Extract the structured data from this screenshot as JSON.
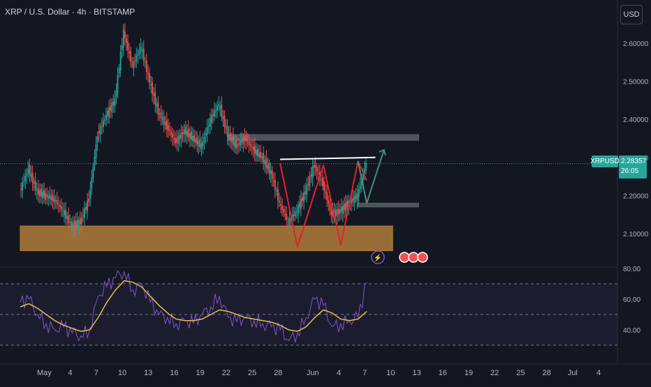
{
  "header": {
    "symbol_title": "XRP / U.S. Dollar · 4h · BITSTAMP",
    "currency_button": "USD"
  },
  "last_price": {
    "symbol": "XRPUSD",
    "value": "2.28357",
    "countdown": "26:05"
  },
  "chart_data": [
    {
      "type": "candlestick",
      "title": "XRP / U.S. Dollar · 4h · BITSTAMP",
      "x_tick_labels": [
        "May",
        "4",
        "7",
        "10",
        "13",
        "16",
        "19",
        "22",
        "25",
        "28",
        "Jun",
        "4",
        "7",
        "10",
        "13",
        "16",
        "19",
        "22",
        "25",
        "28",
        "Jul",
        "4"
      ],
      "y_tick_labels": [
        "2.10000",
        "2.20000",
        "2.30000",
        "2.40000",
        "2.50000",
        "2.60000"
      ],
      "ylim": [
        2.03,
        2.72
      ],
      "series": [
        {
          "type": "close_path",
          "points": [
            [
              "2025-04-30",
              2.21
            ],
            [
              "2025-05-01",
              2.27
            ],
            [
              "2025-05-02",
              2.21
            ],
            [
              "2025-05-03",
              2.2
            ],
            [
              "2025-05-04",
              2.19
            ],
            [
              "2025-05-05",
              2.16
            ],
            [
              "2025-05-06",
              2.12
            ],
            [
              "2025-05-07",
              2.13
            ],
            [
              "2025-05-08",
              2.19
            ],
            [
              "2025-05-09",
              2.36
            ],
            [
              "2025-05-10",
              2.41
            ],
            [
              "2025-05-11",
              2.45
            ],
            [
              "2025-05-12",
              2.63
            ],
            [
              "2025-05-13",
              2.54
            ],
            [
              "2025-05-14",
              2.59
            ],
            [
              "2025-05-15",
              2.5
            ],
            [
              "2025-05-16",
              2.42
            ],
            [
              "2025-05-17",
              2.38
            ],
            [
              "2025-05-18",
              2.34
            ],
            [
              "2025-05-19",
              2.37
            ],
            [
              "2025-05-20",
              2.35
            ],
            [
              "2025-05-21",
              2.33
            ],
            [
              "2025-05-22",
              2.4
            ],
            [
              "2025-05-23",
              2.44
            ],
            [
              "2025-05-24",
              2.36
            ],
            [
              "2025-05-25",
              2.33
            ],
            [
              "2025-05-26",
              2.35
            ],
            [
              "2025-05-27",
              2.32
            ],
            [
              "2025-05-28",
              2.3
            ],
            [
              "2025-05-29",
              2.26
            ],
            [
              "2025-05-30",
              2.18
            ],
            [
              "2025-05-31",
              2.13
            ],
            [
              "2025-06-01",
              2.16
            ],
            [
              "2025-06-02",
              2.21
            ],
            [
              "2025-06-03",
              2.28
            ],
            [
              "2025-06-04",
              2.23
            ],
            [
              "2025-06-05",
              2.15
            ],
            [
              "2025-06-06",
              2.16
            ],
            [
              "2025-06-07",
              2.18
            ],
            [
              "2025-06-08",
              2.2
            ],
            [
              "2025-06-09",
              2.28357
            ]
          ]
        }
      ],
      "levels": [
        {
          "name": "last-price",
          "value": 2.28357
        }
      ],
      "annotations": [
        {
          "type": "zone",
          "name": "support-zone",
          "color": "#b07d38",
          "x": [
            "2025-04-30",
            "2025-06-12"
          ],
          "y": [
            2.055,
            2.12
          ]
        },
        {
          "type": "zone",
          "name": "resistance-zone-upper",
          "color": "#5b5e66",
          "x": [
            "2025-05-24",
            "2025-06-15"
          ],
          "y": [
            2.345,
            2.36
          ]
        },
        {
          "type": "zone",
          "name": "resistance-zone-lower",
          "color": "#5b5e66",
          "x": [
            "2025-06-08",
            "2025-06-15"
          ],
          "y": [
            2.17,
            2.18
          ]
        },
        {
          "type": "line",
          "name": "neckline",
          "color": "#ffffff",
          "points": [
            [
              "2025-05-30",
              2.295
            ],
            [
              "2025-06-10",
              2.3
            ]
          ]
        },
        {
          "type": "polyline",
          "name": "double-bottom-pattern",
          "color": "#e91e2c",
          "points": [
            [
              "2025-05-30",
              2.285
            ],
            [
              "2025-06-01",
              2.065
            ],
            [
              "2025-06-04",
              2.28
            ],
            [
              "2025-06-06",
              2.07
            ],
            [
              "2025-06-08",
              2.29
            ],
            [
              "2025-06-09",
              2.24
            ]
          ]
        },
        {
          "type": "polyline",
          "name": "projection-arrow",
          "color": "#4a8c7a",
          "points": [
            [
              "2025-06-08",
              2.29
            ],
            [
              "2025-06-09",
              2.18
            ],
            [
              "2025-06-11",
              2.32
            ]
          ]
        }
      ],
      "grid": false
    },
    {
      "type": "line",
      "title": "",
      "y_tick_labels": [
        "40.00",
        "60.00",
        "80.00"
      ],
      "ylim": [
        27,
        84
      ],
      "reference_lines": [
        30,
        50,
        70
      ],
      "series": [
        {
          "name": "rsi",
          "color": "#7e57c2",
          "points": [
            [
              "2025-04-30",
              58
            ],
            [
              "2025-05-01",
              60
            ],
            [
              "2025-05-02",
              50
            ],
            [
              "2025-05-03",
              44
            ],
            [
              "2025-05-04",
              40
            ],
            [
              "2025-05-05",
              42
            ],
            [
              "2025-05-06",
              38
            ],
            [
              "2025-05-07",
              36
            ],
            [
              "2025-05-08",
              40
            ],
            [
              "2025-05-09",
              62
            ],
            [
              "2025-05-10",
              68
            ],
            [
              "2025-05-11",
              74
            ],
            [
              "2025-05-12",
              78
            ],
            [
              "2025-05-13",
              66
            ],
            [
              "2025-05-14",
              70
            ],
            [
              "2025-05-15",
              58
            ],
            [
              "2025-05-16",
              50
            ],
            [
              "2025-05-17",
              48
            ],
            [
              "2025-05-18",
              44
            ],
            [
              "2025-05-19",
              46
            ],
            [
              "2025-05-20",
              44
            ],
            [
              "2025-05-21",
              50
            ],
            [
              "2025-05-22",
              55
            ],
            [
              "2025-05-23",
              62
            ],
            [
              "2025-05-24",
              48
            ],
            [
              "2025-05-25",
              45
            ],
            [
              "2025-05-26",
              48
            ],
            [
              "2025-05-27",
              46
            ],
            [
              "2025-05-28",
              44
            ],
            [
              "2025-05-29",
              42
            ],
            [
              "2025-05-30",
              40
            ],
            [
              "2025-05-31",
              33
            ],
            [
              "2025-06-01",
              38
            ],
            [
              "2025-06-02",
              48
            ],
            [
              "2025-06-03",
              60
            ],
            [
              "2025-06-04",
              56
            ],
            [
              "2025-06-05",
              42
            ],
            [
              "2025-06-06",
              44
            ],
            [
              "2025-06-07",
              46
            ],
            [
              "2025-06-08",
              48
            ],
            [
              "2025-06-09",
              71
            ]
          ]
        },
        {
          "name": "rsi-ma",
          "color": "#e0c34a",
          "points": [
            [
              "2025-04-30",
              55
            ],
            [
              "2025-05-01",
              57
            ],
            [
              "2025-05-02",
              54
            ],
            [
              "2025-05-03",
              50
            ],
            [
              "2025-05-04",
              46
            ],
            [
              "2025-05-05",
              43
            ],
            [
              "2025-05-06",
              41
            ],
            [
              "2025-05-07",
              39
            ],
            [
              "2025-05-08",
              40
            ],
            [
              "2025-05-09",
              48
            ],
            [
              "2025-05-10",
              58
            ],
            [
              "2025-05-11",
              66
            ],
            [
              "2025-05-12",
              72
            ],
            [
              "2025-05-13",
              71
            ],
            [
              "2025-05-14",
              68
            ],
            [
              "2025-05-15",
              62
            ],
            [
              "2025-05-16",
              56
            ],
            [
              "2025-05-17",
              51
            ],
            [
              "2025-05-18",
              47
            ],
            [
              "2025-05-19",
              46
            ],
            [
              "2025-05-20",
              46
            ],
            [
              "2025-05-21",
              47
            ],
            [
              "2025-05-22",
              50
            ],
            [
              "2025-05-23",
              53
            ],
            [
              "2025-05-24",
              52
            ],
            [
              "2025-05-25",
              50
            ],
            [
              "2025-05-26",
              48
            ],
            [
              "2025-05-27",
              47
            ],
            [
              "2025-05-28",
              46
            ],
            [
              "2025-05-29",
              45
            ],
            [
              "2025-05-30",
              43
            ],
            [
              "2025-05-31",
              40
            ],
            [
              "2025-06-01",
              39
            ],
            [
              "2025-06-02",
              42
            ],
            [
              "2025-06-03",
              48
            ],
            [
              "2025-06-04",
              53
            ],
            [
              "2025-06-05",
              51
            ],
            [
              "2025-06-06",
              47
            ],
            [
              "2025-06-07",
              46
            ],
            [
              "2025-06-08",
              47
            ],
            [
              "2025-06-09",
              52
            ]
          ]
        }
      ],
      "grid": false
    }
  ]
}
